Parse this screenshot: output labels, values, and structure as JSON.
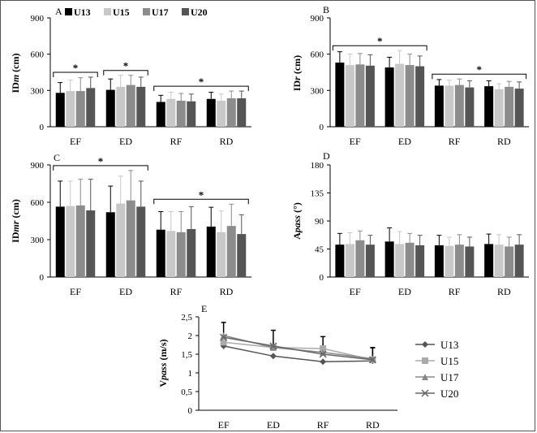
{
  "legend_bars": [
    {
      "name": "U13",
      "color": "#000000"
    },
    {
      "name": "U15",
      "color": "#c8c8c8"
    },
    {
      "name": "U17",
      "color": "#8c8c8c"
    },
    {
      "name": "U20",
      "color": "#555555"
    }
  ],
  "chart_data": [
    {
      "panel": "A",
      "type": "bar",
      "ylabel": "IDm (cm)",
      "ylabel_main": "ID",
      "ylabel_italic": "m",
      "ylabel_unit": " (cm)",
      "ylim": [
        0,
        900
      ],
      "yticks": [
        "0",
        "300",
        "600",
        "900"
      ],
      "categories": [
        "EF",
        "ED",
        "RF",
        "RD"
      ],
      "series": [
        {
          "name": "U13",
          "values": [
            280,
            305,
            205,
            230
          ],
          "err": [
            85,
            90,
            55,
            55
          ]
        },
        {
          "name": "U15",
          "values": [
            295,
            330,
            230,
            215
          ],
          "err": [
            90,
            95,
            55,
            55
          ]
        },
        {
          "name": "U17",
          "values": [
            295,
            345,
            215,
            235
          ],
          "err": [
            110,
            80,
            60,
            60
          ]
        },
        {
          "name": "U20",
          "values": [
            320,
            330,
            210,
            235
          ],
          "err": [
            90,
            80,
            60,
            60
          ]
        }
      ],
      "brackets": [
        {
          "from": 0,
          "to": 0,
          "label": "*"
        },
        {
          "from": 1,
          "to": 1,
          "label": "*"
        },
        {
          "from": 2,
          "to": 3,
          "label": "*"
        }
      ],
      "legend": "top"
    },
    {
      "panel": "B",
      "type": "bar",
      "ylabel": "IDr (cm)",
      "ylabel_main": "ID",
      "ylabel_italic": "r",
      "ylabel_unit": " (cm)",
      "ylim": [
        0,
        900
      ],
      "yticks": [
        "0",
        "300",
        "600",
        "900"
      ],
      "categories": [
        "EF",
        "ED",
        "RF",
        "RD"
      ],
      "series": [
        {
          "name": "U13",
          "values": [
            530,
            490,
            340,
            335
          ],
          "err": [
            90,
            85,
            50,
            45
          ]
        },
        {
          "name": "U15",
          "values": [
            510,
            520,
            340,
            310
          ],
          "err": [
            90,
            110,
            45,
            45
          ]
        },
        {
          "name": "U17",
          "values": [
            515,
            510,
            345,
            330
          ],
          "err": [
            90,
            90,
            50,
            45
          ]
        },
        {
          "name": "U20",
          "values": [
            505,
            500,
            325,
            315
          ],
          "err": [
            90,
            85,
            55,
            55
          ]
        }
      ],
      "brackets": [
        {
          "from": 0,
          "to": 1,
          "label": "*"
        },
        {
          "from": 2,
          "to": 3,
          "label": "*"
        }
      ]
    },
    {
      "panel": "C",
      "type": "bar",
      "ylabel": "IDmr (cm)",
      "ylabel_main": "ID",
      "ylabel_italic": "mr",
      "ylabel_unit": " (cm)",
      "ylim": [
        0,
        900
      ],
      "yticks": [
        "0",
        "300",
        "600",
        "900"
      ],
      "categories": [
        "EF",
        "ED",
        "RF",
        "RD"
      ],
      "series": [
        {
          "name": "U13",
          "values": [
            565,
            520,
            380,
            405
          ],
          "err": [
            205,
            210,
            145,
            155
          ]
        },
        {
          "name": "U15",
          "values": [
            570,
            590,
            370,
            360
          ],
          "err": [
            200,
            220,
            155,
            170
          ]
        },
        {
          "name": "U17",
          "values": [
            575,
            615,
            360,
            410
          ],
          "err": [
            210,
            240,
            165,
            175
          ]
        },
        {
          "name": "U20",
          "values": [
            535,
            565,
            385,
            345
          ],
          "err": [
            250,
            205,
            180,
            155
          ]
        }
      ],
      "brackets": [
        {
          "from": 0,
          "to": 1,
          "label": "*"
        },
        {
          "from": 2,
          "to": 3,
          "label": "*"
        }
      ]
    },
    {
      "panel": "D",
      "type": "bar",
      "ylabel": "Apass (°)",
      "ylabel_main": "A",
      "ylabel_italic": "pass",
      "ylabel_unit": " (°)",
      "ylim": [
        0,
        180
      ],
      "yticks": [
        "0",
        "45",
        "90",
        "135",
        "180"
      ],
      "categories": [
        "EF",
        "ED",
        "RF",
        "RD"
      ],
      "series": [
        {
          "name": "U13",
          "values": [
            52,
            57,
            51,
            53
          ],
          "err": [
            18,
            22,
            16,
            16
          ]
        },
        {
          "name": "U15",
          "values": [
            53,
            53,
            50,
            52
          ],
          "err": [
            18,
            20,
            14,
            16
          ]
        },
        {
          "name": "U17",
          "values": [
            59,
            55,
            52,
            49
          ],
          "err": [
            15,
            15,
            16,
            15
          ]
        },
        {
          "name": "U20",
          "values": [
            52,
            51,
            49,
            52
          ],
          "err": [
            15,
            16,
            15,
            16
          ]
        }
      ],
      "brackets": []
    },
    {
      "panel": "E",
      "type": "line",
      "ylabel": "Vpass (m/s)",
      "ylabel_main": "V",
      "ylabel_italic": "pass",
      "ylabel_unit": " (m/s)",
      "ylim": [
        0,
        2.5
      ],
      "yticks": [
        "0",
        "0,5",
        "1",
        "1,5",
        "2",
        "2,5"
      ],
      "categories": [
        "EF",
        "ED",
        "RF",
        "RD"
      ],
      "series": [
        {
          "name": "U13",
          "marker": "diamond",
          "color": "#555555",
          "values": [
            1.72,
            1.45,
            1.3,
            1.32
          ],
          "err": [
            0,
            0,
            0,
            0
          ]
        },
        {
          "name": "U15",
          "marker": "square",
          "color": "#aaaaaa",
          "values": [
            1.82,
            1.68,
            1.65,
            1.35
          ],
          "err": [
            0,
            0,
            0,
            0
          ]
        },
        {
          "name": "U17",
          "marker": "triangle",
          "color": "#888888",
          "values": [
            2.0,
            1.68,
            1.55,
            1.38
          ],
          "err": [
            0,
            0,
            0.42,
            0.3
          ]
        },
        {
          "name": "U20",
          "marker": "x",
          "color": "#666666",
          "values": [
            1.95,
            1.72,
            1.5,
            1.35
          ],
          "err": [
            0.4,
            0.42,
            0,
            0.32
          ]
        }
      ]
    }
  ]
}
